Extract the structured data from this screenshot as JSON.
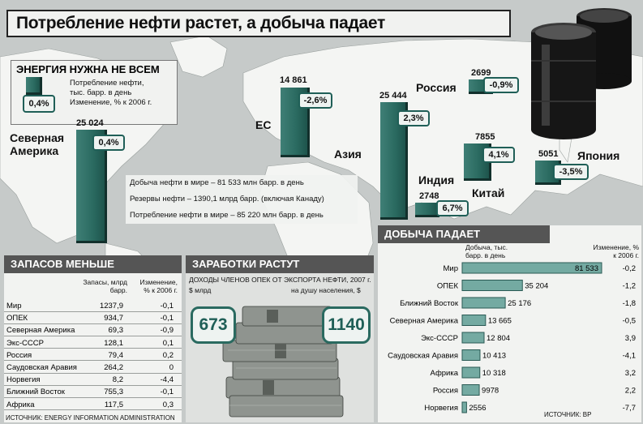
{
  "title": "Потребление нефти растет, а добыча падает",
  "legend": {
    "header": "ЭНЕРГИЯ НУЖНА НЕ ВСЕМ",
    "sample_value": "0,4%",
    "line1": "Потребление нефти,",
    "line2": "тыс. барр. в день",
    "line3": "Изменение, % к 2006 г."
  },
  "consumption": {
    "regions": [
      {
        "name": "Северная Америка",
        "value": "25 024",
        "change": "0,4%"
      },
      {
        "name": "ЕС",
        "value": "14 861",
        "change": "-2,6%"
      },
      {
        "name": "Азия",
        "value": "25 444",
        "change": "2,3%"
      },
      {
        "name": "Россия",
        "value": "2699",
        "change": "-0,9%"
      },
      {
        "name": "Китай",
        "value": "7855",
        "change": "4,1%"
      },
      {
        "name": "Индия",
        "value": "2748",
        "change": "6,7%"
      },
      {
        "name": "Япония",
        "value": "5051",
        "change": "-3,5%"
      }
    ]
  },
  "facts": [
    "Добыча нефти в мире – 81 533 млн барр. в день",
    "Резервы нефти – 1390,1 млрд барр. (включая Канаду)",
    "Потребление нефти в мире – 85 220 млн барр. в день"
  ],
  "reserves": {
    "header": "ЗАПАСОВ МЕНЬШЕ",
    "col1": "Запасы, млрд барр.",
    "col2": "Изменение, % к 2006 г.",
    "rows": [
      {
        "name": "Мир",
        "value": "1237,9",
        "change": "-0,1"
      },
      {
        "name": "ОПЕК",
        "value": "934,7",
        "change": "-0,1"
      },
      {
        "name": "Северная Америка",
        "value": "69,3",
        "change": "-0,9"
      },
      {
        "name": "Экс-СССР",
        "value": "128,1",
        "change": "0,1"
      },
      {
        "name": "Россия",
        "value": "79,4",
        "change": "0,2"
      },
      {
        "name": "Саудовская Аравия",
        "value": "264,2",
        "change": "0"
      },
      {
        "name": "Норвегия",
        "value": "8,2",
        "change": "-4,4"
      },
      {
        "name": "Ближний Восток",
        "value": "755,3",
        "change": "-0,1"
      },
      {
        "name": "Африка",
        "value": "117,5",
        "change": "0,3"
      }
    ],
    "source": "ИСТОЧНИК: ENERGY INFORMATION ADMINISTRATION"
  },
  "earnings": {
    "header": "ЗАРАБОТКИ РАСТУТ",
    "subtitle": "ДОХОДЫ ЧЛЕНОВ ОПЕК ОТ ЭКСПОРТА НЕФТИ, 2007 г.",
    "left_label": "$ млрд",
    "right_label": "на душу населения, $",
    "left_value": "673",
    "right_value": "1140"
  },
  "production": {
    "header": "ДОБЫЧА ПАДАЕТ",
    "col1": "Добыча, тыс. барр. в день",
    "col2": "Изменение, % к 2006 г.",
    "source": "ИСТОЧНИК: BP"
  },
  "chart_data": {
    "type": "bar",
    "title": "ДОБЫЧА ПАДАЕТ",
    "categories": [
      "Мир",
      "ОПЕК",
      "Ближний Восток",
      "Северная Америка",
      "Экс-СССР",
      "Саудовская Аравия",
      "Африка",
      "Россия",
      "Норвегия"
    ],
    "values": [
      81533,
      35204,
      25176,
      13665,
      12804,
      10413,
      10318,
      9978,
      2556
    ],
    "value_labels": [
      "81 533",
      "35 204",
      "25 176",
      "13 665",
      "12 804",
      "10 413",
      "10 318",
      "9978",
      "2556"
    ],
    "changes": [
      "-0,2",
      "-1,2",
      "-1,8",
      "-0,5",
      "3,9",
      "-4,1",
      "3,2",
      "2,2",
      "-7,7"
    ],
    "xlim": [
      0,
      81533
    ]
  }
}
